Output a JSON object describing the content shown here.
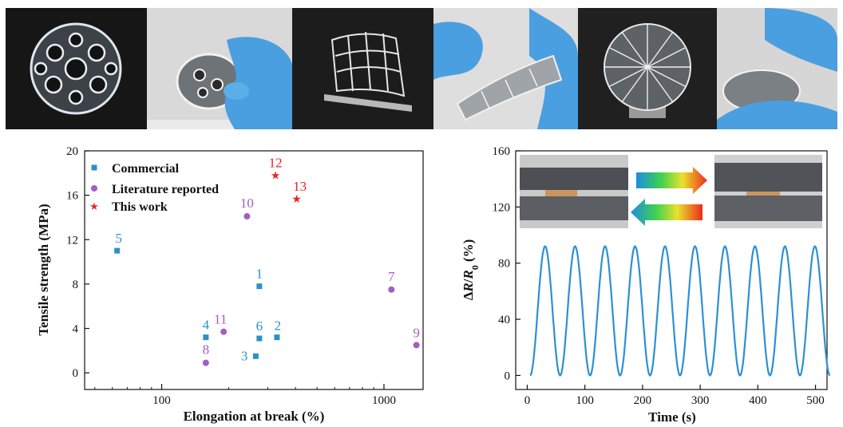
{
  "photos": [
    {
      "name": "spherical-lattice-photo",
      "bg": "#1a1a1a"
    },
    {
      "name": "spherical-lattice-pressed-photo",
      "bg": "#dcdcdc"
    },
    {
      "name": "wavy-lattice-photo",
      "bg": "#1c1c1c"
    },
    {
      "name": "wavy-lattice-bent-photo",
      "bg": "#e2e2e2"
    },
    {
      "name": "dome-lattice-photo",
      "bg": "#202020"
    },
    {
      "name": "dome-lattice-pressed-photo",
      "bg": "#d8d8d8"
    }
  ],
  "colors": {
    "commercial": "#2b90c9",
    "literature": "#a25ec3",
    "this_work": "#e8252a",
    "curve": "#2e8fd6",
    "glove": "#4a9fe0"
  },
  "chart_data": [
    {
      "type": "scatter",
      "xlabel": "Elongation at break (%)",
      "ylabel": "Tensile strength (MPa)",
      "xscale": "log",
      "xlim": [
        45,
        1500
      ],
      "ylim": [
        -1.5,
        20
      ],
      "x_ticks": [
        100,
        1000
      ],
      "y_ticks": [
        0,
        4,
        8,
        12,
        16,
        20
      ],
      "legend_placement": "top-left",
      "series": [
        {
          "name": "Commercial",
          "marker": "square",
          "points": [
            {
              "label": "1",
              "x": 275,
              "y": 7.8
            },
            {
              "label": "2",
              "x": 330,
              "y": 3.2
            },
            {
              "label": "3",
              "x": 265,
              "y": 1.5
            },
            {
              "label": "4",
              "x": 158,
              "y": 3.2
            },
            {
              "label": "5",
              "x": 63,
              "y": 11.0
            },
            {
              "label": "6",
              "x": 275,
              "y": 3.1
            }
          ]
        },
        {
          "name": "Literature reported",
          "marker": "circle",
          "points": [
            {
              "label": "7",
              "x": 1080,
              "y": 7.5
            },
            {
              "label": "8",
              "x": 158,
              "y": 0.9
            },
            {
              "label": "9",
              "x": 1400,
              "y": 2.5
            },
            {
              "label": "10",
              "x": 242,
              "y": 14.1
            },
            {
              "label": "11",
              "x": 190,
              "y": 3.7
            }
          ]
        },
        {
          "name": "This work",
          "marker": "star",
          "points": [
            {
              "label": "12",
              "x": 325,
              "y": 17.8
            },
            {
              "label": "13",
              "x": 405,
              "y": 15.7
            }
          ]
        }
      ]
    },
    {
      "type": "line",
      "xlabel": "Time (s)",
      "ylabel_parts": [
        "Δ",
        "R",
        "/",
        "R",
        "0",
        " (%)"
      ],
      "xlim": [
        -20,
        520
      ],
      "ylim": [
        -10,
        160
      ],
      "x_ticks": [
        0,
        100,
        200,
        300,
        400,
        500
      ],
      "y_ticks": [
        0,
        40,
        80,
        120,
        160
      ],
      "cycles": 10,
      "period_s": 52,
      "start_s": 5,
      "min": 0,
      "max": 92
    }
  ]
}
